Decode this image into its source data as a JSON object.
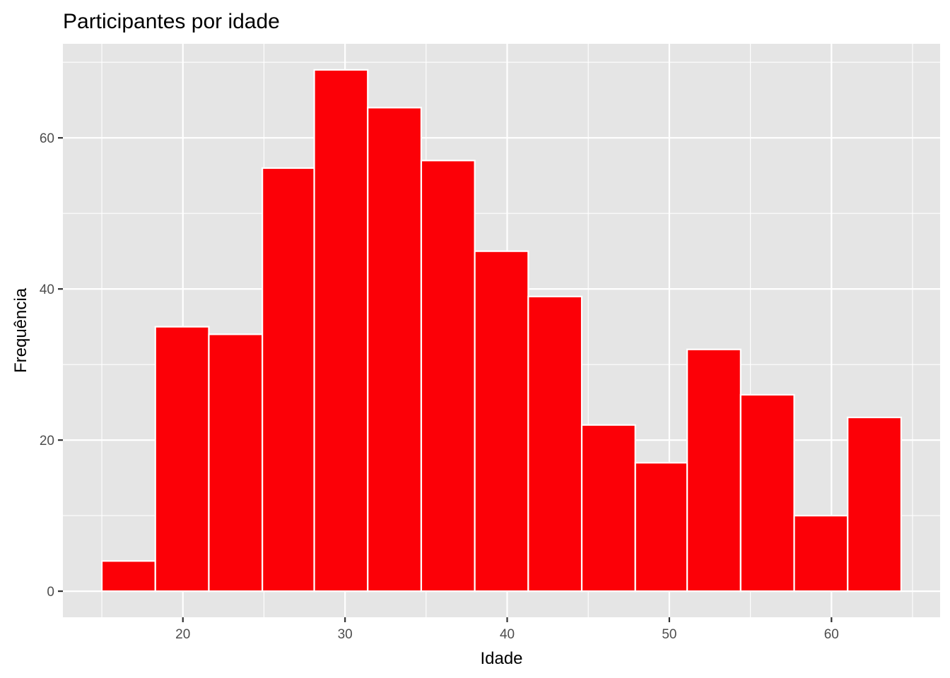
{
  "chart_data": {
    "type": "bar",
    "title": "Participantes por idade",
    "xlabel": "Idade",
    "ylabel": "Frequência",
    "bins": [
      {
        "x0": 15.0,
        "x1": 18.3,
        "count": 4
      },
      {
        "x0": 18.3,
        "x1": 21.6,
        "count": 35
      },
      {
        "x0": 21.6,
        "x1": 24.9,
        "count": 34
      },
      {
        "x0": 24.9,
        "x1": 28.1,
        "count": 56
      },
      {
        "x0": 28.1,
        "x1": 31.4,
        "count": 69
      },
      {
        "x0": 31.4,
        "x1": 34.7,
        "count": 64
      },
      {
        "x0": 34.7,
        "x1": 38.0,
        "count": 57
      },
      {
        "x0": 38.0,
        "x1": 41.3,
        "count": 45
      },
      {
        "x0": 41.3,
        "x1": 44.6,
        "count": 39
      },
      {
        "x0": 44.6,
        "x1": 47.9,
        "count": 22
      },
      {
        "x0": 47.9,
        "x1": 51.1,
        "count": 17
      },
      {
        "x0": 51.1,
        "x1": 54.4,
        "count": 32
      },
      {
        "x0": 54.4,
        "x1": 57.7,
        "count": 26
      },
      {
        "x0": 57.7,
        "x1": 61.0,
        "count": 10
      },
      {
        "x0": 61.0,
        "x1": 64.3,
        "count": 23
      }
    ],
    "xlim": [
      12.6,
      66.7
    ],
    "ylim": [
      -3.45,
      72.45
    ],
    "x_ticks": [
      20,
      30,
      40,
      50,
      60
    ],
    "x_minor_ticks": [
      15,
      25,
      35,
      45,
      55,
      65
    ],
    "y_ticks": [
      0,
      20,
      40,
      60
    ],
    "y_minor_ticks": [
      10,
      30,
      50,
      70
    ],
    "grid": true,
    "colors": {
      "bar_fill": "#FC0007",
      "bar_outline": "#FFFFFF",
      "panel_background": "#E5E5E5",
      "gridline": "#FFFFFF"
    }
  }
}
